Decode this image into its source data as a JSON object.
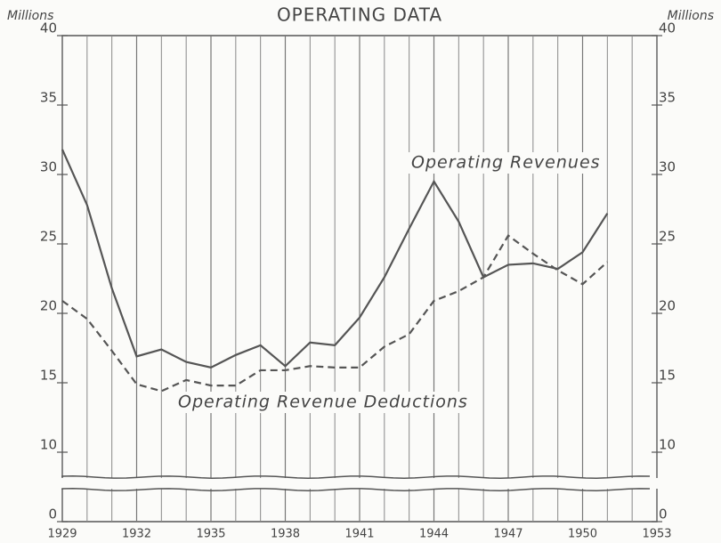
{
  "chart_data": {
    "type": "line",
    "title": "OPERATING DATA",
    "y_label": "Millions",
    "y2_label": "Millions",
    "x": [
      1929,
      1930,
      1931,
      1932,
      1933,
      1934,
      1935,
      1936,
      1937,
      1938,
      1939,
      1940,
      1941,
      1942,
      1943,
      1944,
      1945,
      1946,
      1947,
      1948,
      1949,
      1950,
      1951
    ],
    "series": [
      {
        "name": "Operating Revenues",
        "color": "#555555",
        "dash": false,
        "values": [
          31.8,
          27.8,
          21.8,
          16.9,
          17.4,
          16.5,
          16.1,
          17.0,
          17.7,
          16.2,
          17.9,
          17.7,
          19.7,
          22.6,
          26.1,
          29.5,
          26.6,
          22.6,
          23.5,
          23.6,
          23.2,
          24.4,
          27.2
        ]
      },
      {
        "name": "Operating Revenue Deductions",
        "color": "#555555",
        "dash": true,
        "values": [
          20.9,
          19.6,
          17.3,
          14.9,
          14.4,
          15.2,
          14.8,
          14.8,
          15.9,
          15.9,
          16.2,
          16.1,
          16.1,
          17.6,
          18.5,
          20.9,
          21.6,
          22.6,
          25.6,
          24.3,
          23.1,
          22.1,
          23.7
        ]
      }
    ],
    "xlim": [
      1929,
      1953
    ],
    "xticks": [
      1929,
      1932,
      1935,
      1938,
      1941,
      1944,
      1947,
      1950,
      1953
    ],
    "ylim": [
      0,
      40
    ],
    "yticks": [
      0,
      10,
      15,
      20,
      25,
      30,
      35,
      40
    ],
    "axis_break": true,
    "grid": true
  }
}
